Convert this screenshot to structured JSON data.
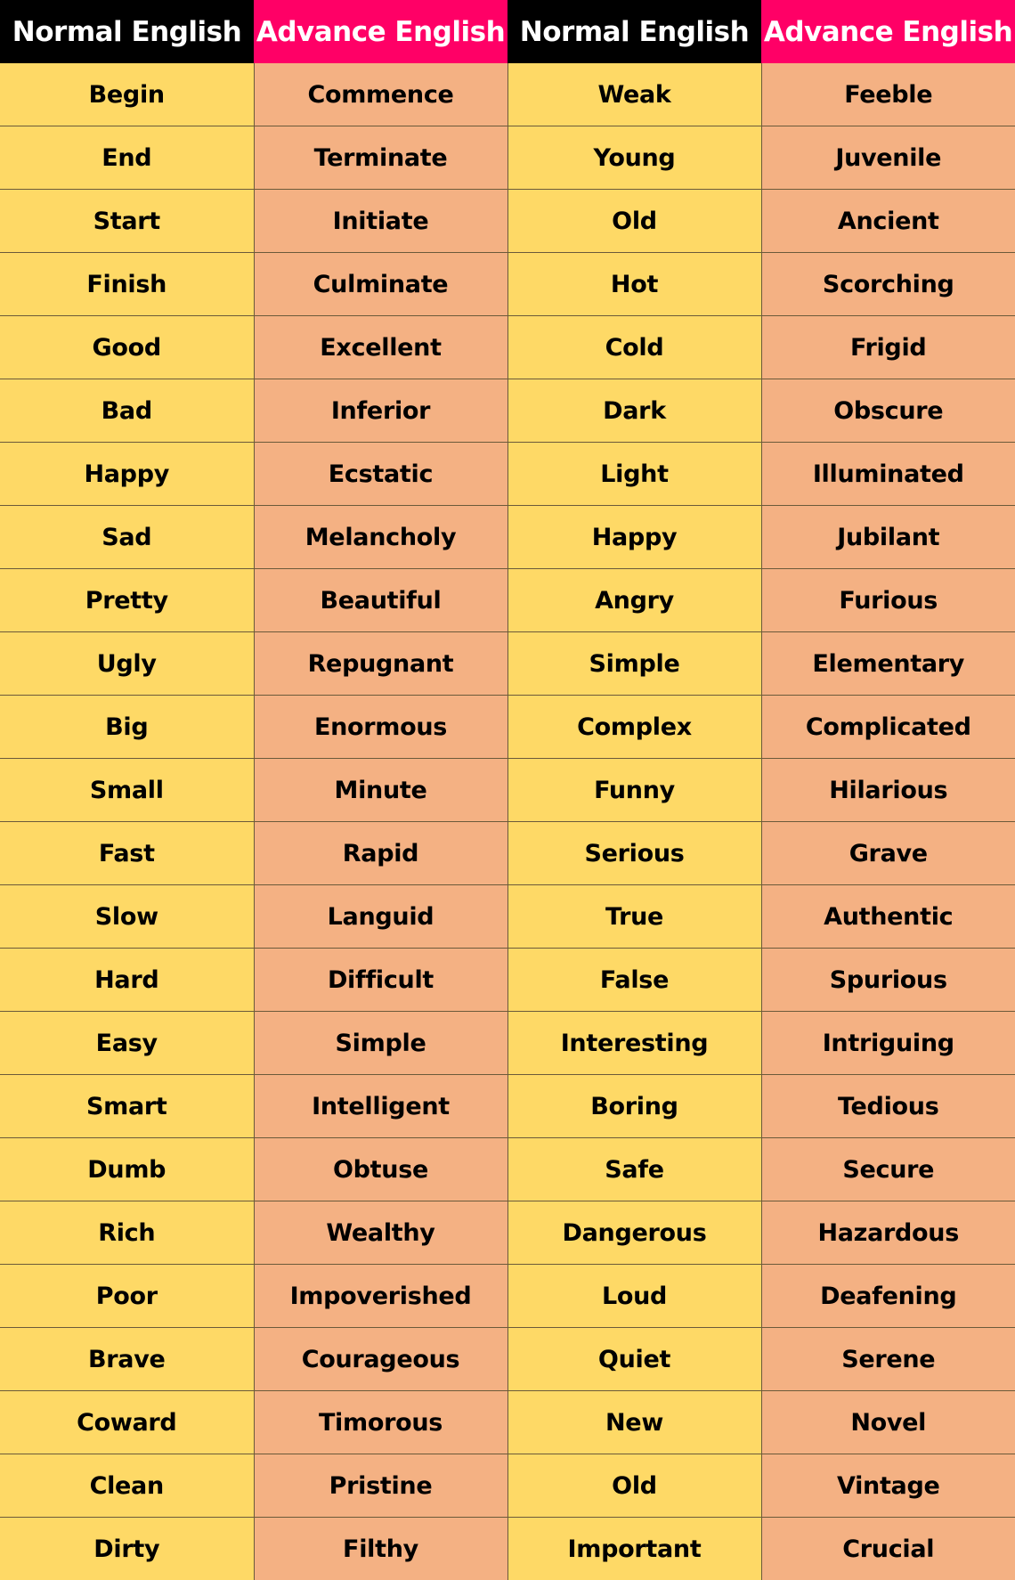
{
  "headers": [
    "Normal English",
    "Advance English",
    "Normal English",
    "Advance English"
  ],
  "colors": {
    "normal_header": "#000000",
    "advance_header": "#ff0066",
    "normal_cell": "#fed966",
    "advance_cell": "#f4b183"
  },
  "rows": [
    [
      "Begin",
      "Commence",
      "Weak",
      "Feeble"
    ],
    [
      "End",
      "Terminate",
      "Young",
      "Juvenile"
    ],
    [
      "Start",
      "Initiate",
      "Old",
      "Ancient"
    ],
    [
      "Finish",
      "Culminate",
      "Hot",
      "Scorching"
    ],
    [
      "Good",
      "Excellent",
      "Cold",
      "Frigid"
    ],
    [
      "Bad",
      "Inferior",
      "Dark",
      "Obscure"
    ],
    [
      "Happy",
      "Ecstatic",
      "Light",
      "Illuminated"
    ],
    [
      "Sad",
      "Melancholy",
      "Happy",
      "Jubilant"
    ],
    [
      "Pretty",
      "Beautiful",
      "Angry",
      "Furious"
    ],
    [
      "Ugly",
      "Repugnant",
      "Simple",
      "Elementary"
    ],
    [
      "Big",
      "Enormous",
      "Complex",
      "Complicated"
    ],
    [
      "Small",
      "Minute",
      "Funny",
      "Hilarious"
    ],
    [
      "Fast",
      "Rapid",
      "Serious",
      "Grave"
    ],
    [
      "Slow",
      "Languid",
      "True",
      "Authentic"
    ],
    [
      "Hard",
      "Difficult",
      "False",
      "Spurious"
    ],
    [
      "Easy",
      "Simple",
      "Interesting",
      "Intriguing"
    ],
    [
      "Smart",
      "Intelligent",
      "Boring",
      "Tedious"
    ],
    [
      "Dumb",
      "Obtuse",
      "Safe",
      "Secure"
    ],
    [
      "Rich",
      "Wealthy",
      "Dangerous",
      "Hazardous"
    ],
    [
      "Poor",
      "Impoverished",
      "Loud",
      "Deafening"
    ],
    [
      "Brave",
      "Courageous",
      "Quiet",
      "Serene"
    ],
    [
      "Coward",
      "Timorous",
      "New",
      "Novel"
    ],
    [
      "Clean",
      "Pristine",
      "Old",
      "Vintage"
    ],
    [
      "Dirty",
      "Filthy",
      "Important",
      "Crucial"
    ]
  ]
}
